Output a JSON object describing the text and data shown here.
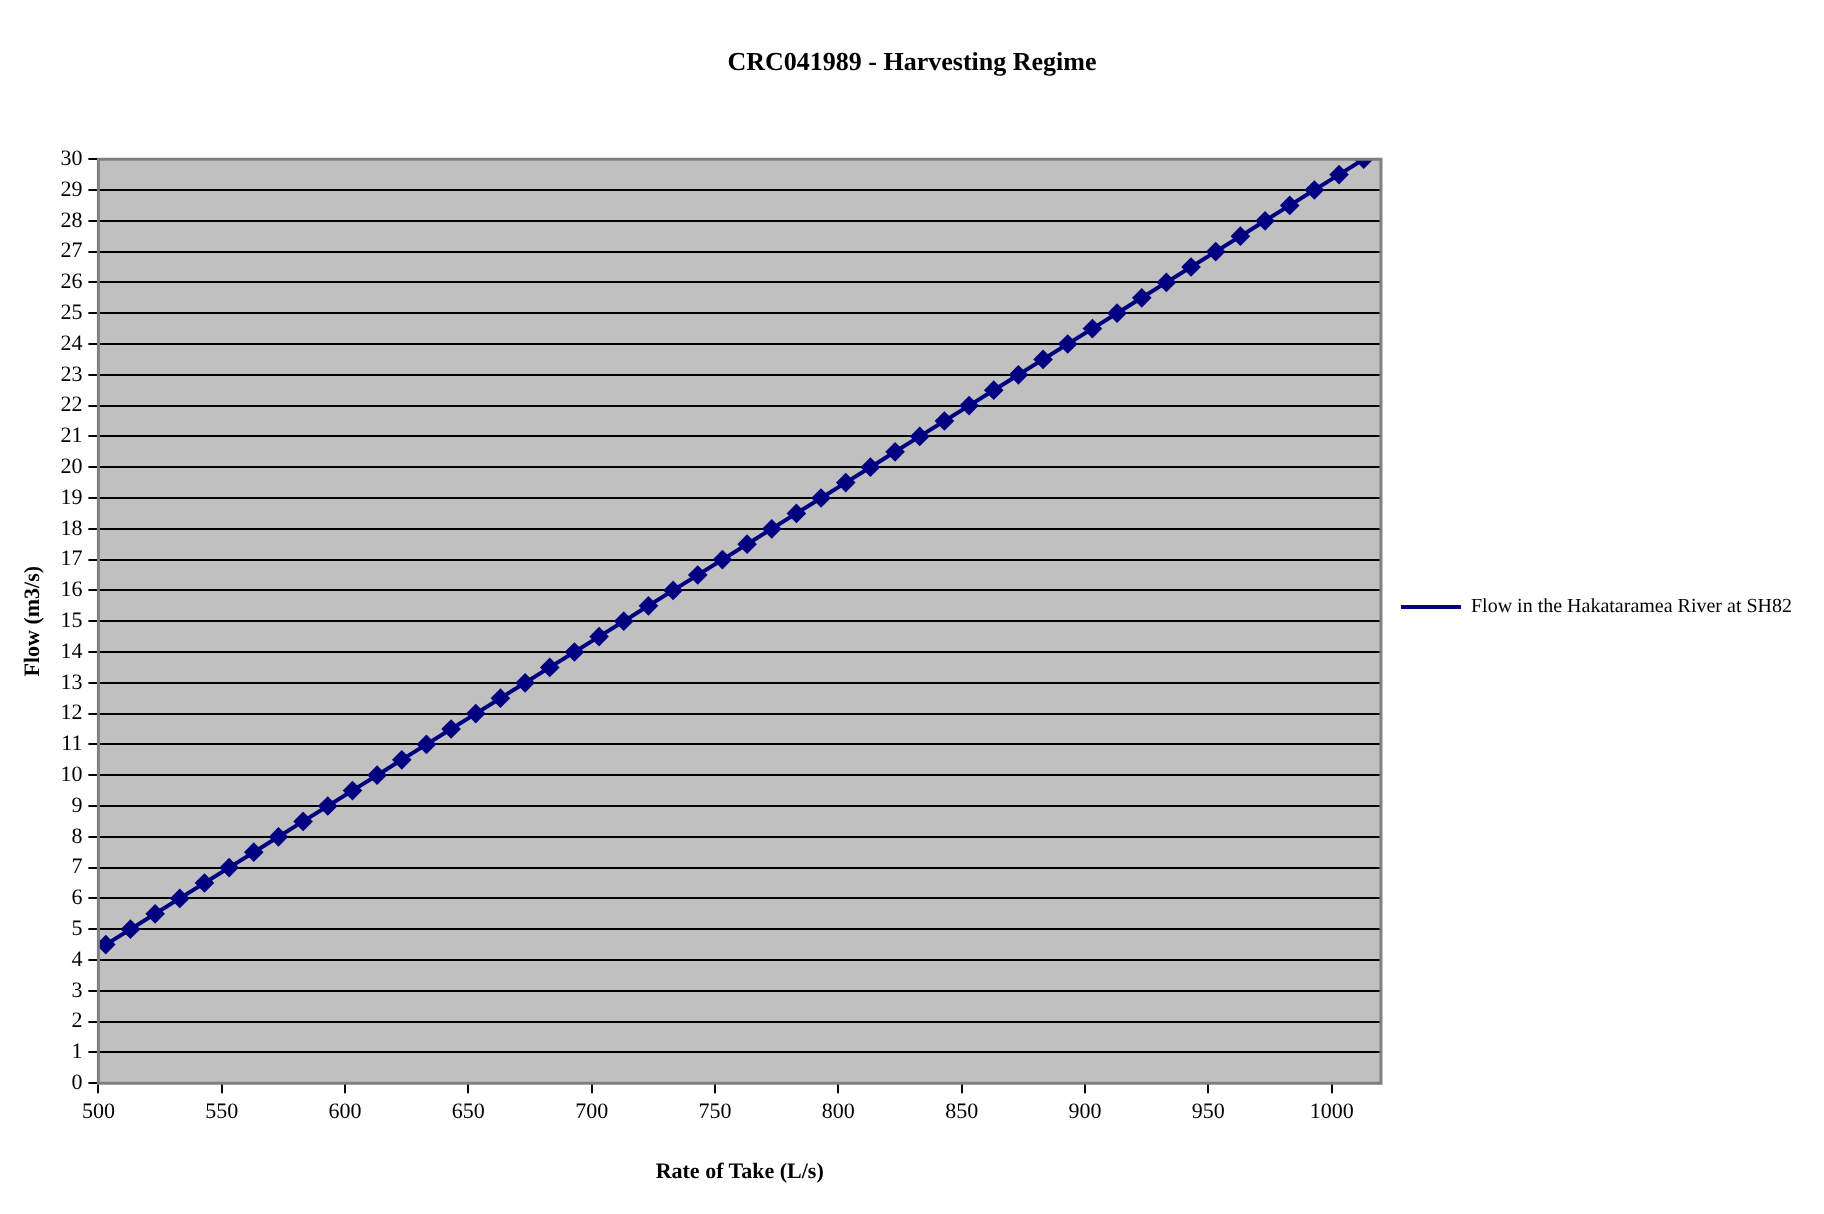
{
  "chart_data": {
    "type": "line",
    "title": "CRC041989 - Harvesting Regime",
    "xlabel": "Rate of Take (L/s)",
    "ylabel": "Flow (m3/s)",
    "x": [
      503,
      513,
      523,
      533,
      543,
      553,
      563,
      573,
      583,
      593,
      603,
      613,
      623,
      633,
      643,
      653,
      663,
      673,
      683,
      693,
      703,
      713,
      723,
      733,
      743,
      753,
      763,
      773,
      783,
      793,
      803,
      813,
      823,
      833,
      843,
      853,
      863,
      873,
      883,
      893,
      903,
      913,
      923,
      933,
      943,
      953,
      963,
      973,
      983,
      993,
      1003,
      1013
    ],
    "series": [
      {
        "name": "Flow in the Hakataramea River at SH82",
        "color": "#000080",
        "values": [
          4.5,
          5,
          5.5,
          6,
          6.5,
          7,
          7.5,
          8,
          8.5,
          9,
          9.5,
          10,
          10.5,
          11,
          11.5,
          12,
          12.5,
          13,
          13.5,
          14,
          14.5,
          15,
          15.5,
          16,
          16.5,
          17,
          17.5,
          18,
          18.5,
          19,
          19.5,
          20,
          20.5,
          21,
          21.5,
          22,
          22.5,
          23,
          23.5,
          24,
          24.5,
          25,
          25.5,
          26,
          26.5,
          27,
          27.5,
          28,
          28.5,
          29,
          29.5,
          30
        ]
      }
    ],
    "xlim": [
      500,
      1020
    ],
    "xticks": [
      500,
      550,
      600,
      650,
      700,
      750,
      800,
      850,
      900,
      950,
      1000
    ],
    "ylim": [
      0,
      30
    ],
    "yticks": [
      0,
      1,
      2,
      3,
      4,
      5,
      6,
      7,
      8,
      9,
      10,
      11,
      12,
      13,
      14,
      15,
      16,
      17,
      18,
      19,
      20,
      21,
      22,
      23,
      24,
      25,
      26,
      27,
      28,
      29,
      30
    ],
    "grid": "y",
    "legend": "right",
    "marker": "diamond",
    "line_style": "solid"
  }
}
